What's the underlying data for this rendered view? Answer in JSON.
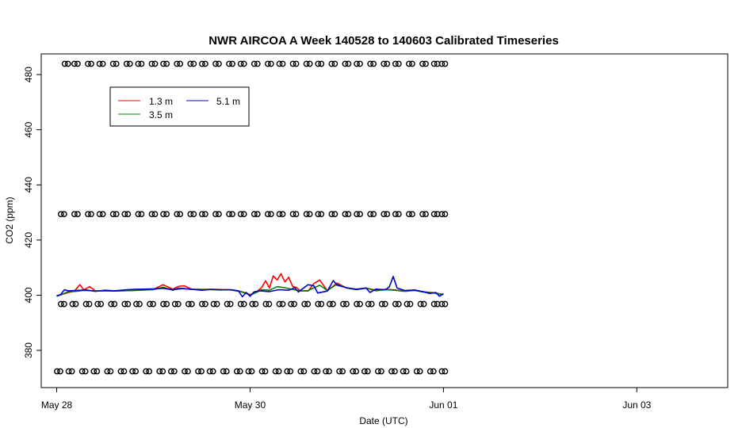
{
  "chart_data": {
    "type": "line",
    "title": "NWR AIRCOA A  Week 140528 to 140603  Calibrated Timeseries",
    "xlabel": "Date (UTC)",
    "ylabel": "CO2 (ppm)",
    "xlim_days": [
      -0.08,
      3.47
    ],
    "ylim": [
      366.5,
      487.5
    ],
    "x_ticks": [
      {
        "value": 0,
        "label": "May 28"
      },
      {
        "value": 1,
        "label": "May 30"
      },
      {
        "value": 2,
        "label": "Jun 01"
      },
      {
        "value": 3,
        "label": "Jun 03"
      }
    ],
    "x_tick_unit_days": 2,
    "y_ticks": [
      380,
      400,
      420,
      440,
      460,
      480
    ],
    "legend": {
      "position": "top-left",
      "entries": [
        {
          "label": "1.3 m",
          "color": "#ff0000"
        },
        {
          "label": "3.5 m",
          "color": "#008000"
        },
        {
          "label": "5.1 m",
          "color": "#0000cc"
        }
      ]
    },
    "series": [
      {
        "name": "1.3 m",
        "color": "#ff0000",
        "points": [
          [
            0.0,
            399.6
          ],
          [
            0.03,
            400.3
          ],
          [
            0.06,
            401.0
          ],
          [
            0.09,
            401.4
          ],
          [
            0.12,
            403.8
          ],
          [
            0.14,
            401.9
          ],
          [
            0.17,
            403.1
          ],
          [
            0.2,
            401.6
          ],
          [
            0.3,
            401.5
          ],
          [
            0.4,
            401.7
          ],
          [
            0.5,
            402.1
          ],
          [
            0.55,
            403.8
          ],
          [
            0.6,
            402.2
          ],
          [
            0.63,
            403.2
          ],
          [
            0.66,
            403.4
          ],
          [
            0.7,
            402.1
          ],
          [
            0.8,
            402.1
          ],
          [
            0.9,
            402.0
          ],
          [
            0.95,
            401.4
          ],
          [
            0.98,
            400.8
          ],
          [
            1.0,
            400.2
          ],
          [
            1.03,
            401.0
          ],
          [
            1.06,
            402.8
          ],
          [
            1.08,
            405.2
          ],
          [
            1.1,
            402.6
          ],
          [
            1.12,
            407.0
          ],
          [
            1.14,
            405.5
          ],
          [
            1.16,
            407.8
          ],
          [
            1.18,
            404.8
          ],
          [
            1.2,
            406.5
          ],
          [
            1.22,
            403.2
          ],
          [
            1.24,
            402.8
          ],
          [
            1.26,
            401.6
          ],
          [
            1.3,
            401.5
          ],
          [
            1.33,
            404.2
          ],
          [
            1.36,
            405.5
          ],
          [
            1.4,
            401.6
          ],
          [
            1.45,
            404.4
          ],
          [
            1.5,
            402.6
          ],
          [
            1.55,
            402.2
          ],
          [
            1.6,
            402.6
          ],
          [
            1.65,
            401.8
          ],
          [
            1.7,
            402.1
          ],
          [
            1.75,
            401.9
          ],
          [
            1.8,
            401.5
          ],
          [
            1.85,
            401.8
          ],
          [
            1.9,
            401.2
          ],
          [
            1.95,
            400.9
          ],
          [
            2.0,
            400.2
          ]
        ]
      },
      {
        "name": "3.5 m",
        "color": "#008000",
        "points": [
          [
            0.0,
            399.6
          ],
          [
            0.03,
            400.4
          ],
          [
            0.06,
            401.3
          ],
          [
            0.1,
            401.4
          ],
          [
            0.14,
            401.7
          ],
          [
            0.2,
            401.6
          ],
          [
            0.3,
            401.5
          ],
          [
            0.4,
            401.7
          ],
          [
            0.5,
            402.0
          ],
          [
            0.55,
            402.9
          ],
          [
            0.6,
            401.8
          ],
          [
            0.63,
            402.6
          ],
          [
            0.7,
            402.1
          ],
          [
            0.8,
            402.0
          ],
          [
            0.9,
            401.9
          ],
          [
            0.95,
            401.3
          ],
          [
            0.98,
            400.6
          ],
          [
            1.0,
            400.0
          ],
          [
            1.03,
            400.9
          ],
          [
            1.06,
            402.0
          ],
          [
            1.1,
            401.8
          ],
          [
            1.14,
            403.1
          ],
          [
            1.18,
            402.7
          ],
          [
            1.22,
            402.1
          ],
          [
            1.26,
            401.5
          ],
          [
            1.3,
            401.7
          ],
          [
            1.36,
            403.6
          ],
          [
            1.4,
            401.7
          ],
          [
            1.45,
            404.0
          ],
          [
            1.5,
            402.6
          ],
          [
            1.55,
            402.0
          ],
          [
            1.6,
            402.6
          ],
          [
            1.65,
            401.6
          ],
          [
            1.7,
            402.0
          ],
          [
            1.75,
            401.8
          ],
          [
            1.8,
            401.4
          ],
          [
            1.85,
            401.7
          ],
          [
            1.9,
            401.1
          ],
          [
            1.95,
            400.8
          ],
          [
            2.0,
            400.2
          ]
        ]
      },
      {
        "name": "5.1 m",
        "color": "#0000cc",
        "points": [
          [
            0.0,
            399.8
          ],
          [
            0.02,
            400.2
          ],
          [
            0.04,
            402.0
          ],
          [
            0.06,
            401.6
          ],
          [
            0.1,
            401.7
          ],
          [
            0.15,
            401.9
          ],
          [
            0.2,
            401.4
          ],
          [
            0.25,
            401.8
          ],
          [
            0.3,
            401.6
          ],
          [
            0.35,
            401.9
          ],
          [
            0.4,
            402.1
          ],
          [
            0.45,
            402.2
          ],
          [
            0.5,
            402.3
          ],
          [
            0.55,
            402.5
          ],
          [
            0.6,
            402.0
          ],
          [
            0.65,
            402.4
          ],
          [
            0.7,
            402.1
          ],
          [
            0.75,
            401.8
          ],
          [
            0.8,
            402.1
          ],
          [
            0.85,
            401.9
          ],
          [
            0.9,
            402.0
          ],
          [
            0.94,
            401.6
          ],
          [
            0.96,
            399.4
          ],
          [
            0.98,
            401.0
          ],
          [
            1.0,
            399.6
          ],
          [
            1.02,
            401.2
          ],
          [
            1.05,
            401.6
          ],
          [
            1.1,
            401.3
          ],
          [
            1.15,
            402.0
          ],
          [
            1.2,
            401.8
          ],
          [
            1.23,
            402.7
          ],
          [
            1.25,
            401.2
          ],
          [
            1.3,
            403.8
          ],
          [
            1.33,
            403.4
          ],
          [
            1.35,
            400.8
          ],
          [
            1.4,
            401.5
          ],
          [
            1.43,
            405.3
          ],
          [
            1.45,
            403.6
          ],
          [
            1.5,
            402.7
          ],
          [
            1.55,
            402.1
          ],
          [
            1.6,
            402.6
          ],
          [
            1.62,
            401.0
          ],
          [
            1.65,
            402.2
          ],
          [
            1.7,
            402.0
          ],
          [
            1.72,
            403.0
          ],
          [
            1.74,
            406.8
          ],
          [
            1.76,
            402.6
          ],
          [
            1.8,
            401.7
          ],
          [
            1.85,
            401.9
          ],
          [
            1.9,
            401.2
          ],
          [
            1.93,
            400.6
          ],
          [
            1.96,
            401.0
          ],
          [
            1.98,
            399.6
          ],
          [
            2.0,
            400.6
          ]
        ]
      }
    ],
    "marker_rows": {
      "marker": "circle-pair",
      "color": "#000000",
      "rows": [
        {
          "y": 483.9,
          "x": [
            0.05,
            0.1,
            0.17,
            0.23,
            0.3,
            0.37,
            0.43,
            0.5,
            0.56,
            0.63,
            0.7,
            0.76,
            0.83,
            0.9,
            0.96,
            1.03,
            1.1,
            1.16,
            1.23,
            1.3,
            1.36,
            1.43,
            1.5,
            1.56,
            1.63,
            1.7,
            1.76,
            1.83,
            1.9,
            1.96,
            2.0
          ]
        },
        {
          "y": 429.4,
          "x": [
            0.03,
            0.1,
            0.17,
            0.23,
            0.3,
            0.36,
            0.43,
            0.5,
            0.56,
            0.63,
            0.7,
            0.76,
            0.83,
            0.9,
            0.96,
            1.03,
            1.1,
            1.16,
            1.23,
            1.3,
            1.36,
            1.43,
            1.5,
            1.56,
            1.63,
            1.7,
            1.76,
            1.83,
            1.9,
            1.96,
            2.0
          ]
        },
        {
          "y": 396.8,
          "x": [
            0.03,
            0.09,
            0.16,
            0.22,
            0.29,
            0.36,
            0.42,
            0.49,
            0.56,
            0.62,
            0.69,
            0.76,
            0.82,
            0.89,
            0.96,
            1.02,
            1.09,
            1.16,
            1.22,
            1.29,
            1.36,
            1.42,
            1.49,
            1.56,
            1.62,
            1.69,
            1.76,
            1.82,
            1.89,
            1.96,
            2.0
          ]
        },
        {
          "y": 372.4,
          "x": [
            0.01,
            0.07,
            0.14,
            0.2,
            0.27,
            0.34,
            0.4,
            0.47,
            0.54,
            0.6,
            0.67,
            0.74,
            0.8,
            0.87,
            0.94,
            1.0,
            1.07,
            1.14,
            1.2,
            1.27,
            1.34,
            1.4,
            1.47,
            1.54,
            1.6,
            1.67,
            1.74,
            1.8,
            1.87,
            1.94,
            2.0
          ]
        }
      ]
    }
  }
}
